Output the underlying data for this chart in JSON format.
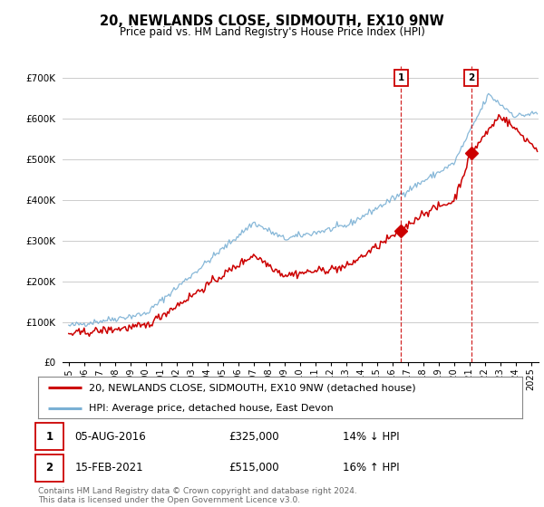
{
  "title": "20, NEWLANDS CLOSE, SIDMOUTH, EX10 9NW",
  "subtitle": "Price paid vs. HM Land Registry's House Price Index (HPI)",
  "ylim": [
    0,
    730000
  ],
  "yticks": [
    0,
    100000,
    200000,
    300000,
    400000,
    500000,
    600000,
    700000
  ],
  "ytick_labels": [
    "£0",
    "£100K",
    "£200K",
    "£300K",
    "£400K",
    "£500K",
    "£600K",
    "£700K"
  ],
  "transaction1": {
    "date": "05-AUG-2016",
    "price": 325000,
    "pct": "14%",
    "dir": "↓",
    "year_float": 2016.58
  },
  "transaction2": {
    "date": "15-FEB-2021",
    "price": 515000,
    "pct": "16%",
    "dir": "↑",
    "year_float": 2021.12
  },
  "legend_line1": "20, NEWLANDS CLOSE, SIDMOUTH, EX10 9NW (detached house)",
  "legend_line2": "HPI: Average price, detached house, East Devon",
  "footnote": "Contains HM Land Registry data © Crown copyright and database right 2024.\nThis data is licensed under the Open Government Licence v3.0.",
  "line_color_red": "#cc0000",
  "line_color_blue": "#7ab0d4",
  "background_color": "#ffffff",
  "grid_color": "#cccccc",
  "title_fontsize": 10.5,
  "subtitle_fontsize": 8.5,
  "axis_fontsize": 7.5,
  "legend_fontsize": 8,
  "footnote_fontsize": 6.5,
  "xstart": 1995,
  "xend": 2025
}
